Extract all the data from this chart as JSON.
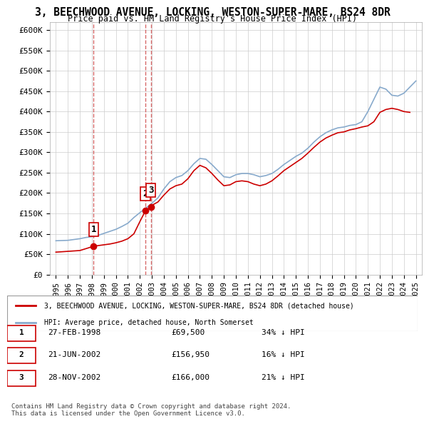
{
  "title": "3, BEECHWOOD AVENUE, LOCKING, WESTON-SUPER-MARE, BS24 8DR",
  "subtitle": "Price paid vs. HM Land Registry's House Price Index (HPI)",
  "legend_property": "3, BEECHWOOD AVENUE, LOCKING, WESTON-SUPER-MARE, BS24 8DR (detached house)",
  "legend_hpi": "HPI: Average price, detached house, North Somerset",
  "footer": "Contains HM Land Registry data © Crown copyright and database right 2024.\nThis data is licensed under the Open Government Licence v3.0.",
  "transactions": [
    {
      "label": "1",
      "date": "27-FEB-1998",
      "price": 69500,
      "hpi_rel": "34% ↓ HPI",
      "year": 1998.15
    },
    {
      "label": "2",
      "date": "21-JUN-2002",
      "price": 156950,
      "hpi_rel": "16% ↓ HPI",
      "year": 2002.47
    },
    {
      "label": "3",
      "date": "28-NOV-2002",
      "price": 166000,
      "hpi_rel": "21% ↓ HPI",
      "year": 2002.91
    }
  ],
  "ylim": [
    0,
    620000
  ],
  "yticks": [
    0,
    50000,
    100000,
    150000,
    200000,
    250000,
    300000,
    350000,
    400000,
    450000,
    500000,
    550000,
    600000
  ],
  "ytick_labels": [
    "£0",
    "£50K",
    "£100K",
    "£150K",
    "£200K",
    "£250K",
    "£300K",
    "£350K",
    "£400K",
    "£450K",
    "£500K",
    "£550K",
    "£600K"
  ],
  "red_color": "#cc0000",
  "blue_color": "#6699cc",
  "property_line_color": "#cc0000",
  "hpi_line_color": "#88aacc",
  "marker_dashed_color": "#cc4444",
  "hpi_x": [
    1995,
    1995.5,
    1996,
    1996.5,
    1997,
    1997.5,
    1998,
    1998.5,
    1999,
    1999.5,
    2000,
    2000.5,
    2001,
    2001.5,
    2002,
    2002.5,
    2003,
    2003.5,
    2004,
    2004.5,
    2005,
    2005.5,
    2006,
    2006.5,
    2007,
    2007.5,
    2008,
    2008.5,
    2009,
    2009.5,
    2010,
    2010.5,
    2011,
    2011.5,
    2012,
    2012.5,
    2013,
    2013.5,
    2014,
    2014.5,
    2015,
    2015.5,
    2016,
    2016.5,
    2017,
    2017.5,
    2018,
    2018.5,
    2019,
    2019.5,
    2020,
    2020.5,
    2021,
    2021.5,
    2022,
    2022.5,
    2023,
    2023.5,
    2024,
    2024.5,
    2025
  ],
  "hpi_y": [
    83000,
    83500,
    84000,
    86000,
    88000,
    91000,
    93000,
    96000,
    101000,
    106000,
    111000,
    118000,
    126000,
    140000,
    152000,
    163000,
    175000,
    188000,
    210000,
    228000,
    238000,
    243000,
    255000,
    272000,
    285000,
    283000,
    270000,
    255000,
    240000,
    238000,
    245000,
    248000,
    248000,
    245000,
    240000,
    243000,
    248000,
    258000,
    270000,
    280000,
    290000,
    298000,
    310000,
    325000,
    338000,
    348000,
    355000,
    360000,
    362000,
    366000,
    368000,
    375000,
    400000,
    430000,
    460000,
    455000,
    440000,
    438000,
    445000,
    460000,
    475000
  ],
  "prop_x": [
    1995,
    1996,
    1997,
    1998.15,
    1998.5,
    1999,
    1999.5,
    2000,
    2000.5,
    2001,
    2001.5,
    2002,
    2002.47,
    2002.91,
    2003,
    2003.5,
    2004,
    2004.5,
    2005,
    2005.5,
    2006,
    2006.5,
    2007,
    2007.5,
    2008,
    2008.5,
    2009,
    2009.5,
    2010,
    2010.5,
    2011,
    2011.5,
    2012,
    2012.5,
    2013,
    2013.5,
    2014,
    2014.5,
    2015,
    2015.5,
    2016,
    2016.5,
    2017,
    2017.5,
    2018,
    2018.5,
    2019,
    2019.5,
    2020,
    2020.5,
    2021,
    2021.5,
    2022,
    2022.5,
    2023,
    2023.5,
    2024,
    2024.5
  ],
  "prop_y": [
    55000,
    57000,
    59000,
    69500,
    71000,
    73000,
    75000,
    78000,
    82000,
    88000,
    100000,
    130000,
    156950,
    166000,
    170000,
    178000,
    195000,
    210000,
    218000,
    222000,
    235000,
    255000,
    268000,
    262000,
    248000,
    232000,
    218000,
    220000,
    228000,
    230000,
    228000,
    222000,
    218000,
    222000,
    230000,
    242000,
    255000,
    265000,
    275000,
    285000,
    298000,
    312000,
    325000,
    335000,
    342000,
    348000,
    350000,
    355000,
    358000,
    362000,
    365000,
    375000,
    398000,
    405000,
    408000,
    405000,
    400000,
    398000
  ],
  "xlim": [
    1994.5,
    2025.5
  ],
  "xticks": [
    1995,
    1996,
    1997,
    1998,
    1999,
    2000,
    2001,
    2002,
    2003,
    2004,
    2005,
    2006,
    2007,
    2008,
    2009,
    2010,
    2011,
    2012,
    2013,
    2014,
    2015,
    2016,
    2017,
    2018,
    2019,
    2020,
    2021,
    2022,
    2023,
    2024,
    2025
  ]
}
